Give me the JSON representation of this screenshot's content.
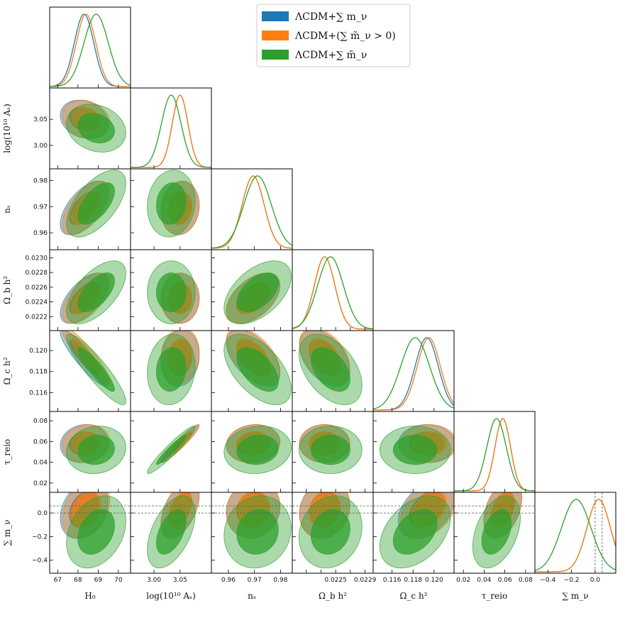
{
  "chart_data": {
    "type": "corner",
    "title": "",
    "params": [
      {
        "key": "H0",
        "label": "H₀",
        "range": [
          66.6,
          70.6
        ],
        "ticks": [
          67,
          68,
          69,
          70
        ],
        "tick_labels": [
          "67",
          "68",
          "69",
          "70"
        ],
        "means": [
          68.3,
          68.4,
          68.9
        ],
        "sigma": 0.48
      },
      {
        "key": "logAs",
        "label": "log(10¹⁰ Aₛ)",
        "range": [
          2.955,
          3.11
        ],
        "ticks": [
          3.0,
          3.05
        ],
        "tick_labels": [
          "3.00",
          "3.05"
        ],
        "means": [
          3.05,
          3.05,
          3.033
        ],
        "sigma": 0.015
      },
      {
        "key": "ns",
        "label": "nₛ",
        "range": [
          0.9535,
          0.9845
        ],
        "ticks": [
          0.96,
          0.97,
          0.98
        ],
        "tick_labels": [
          "0.96",
          "0.97",
          "0.98"
        ],
        "means": [
          0.9695,
          0.9695,
          0.9712
        ],
        "sigma": 0.0042
      },
      {
        "key": "Obh2",
        "label": "Ω_b h²",
        "range": [
          0.02201,
          0.02311
        ],
        "ticks": [
          0.0222,
          0.0224,
          0.0226,
          0.0228,
          0.023
        ],
        "tick_labels": [
          "0.0222",
          "0.0224",
          "0.0226",
          "0.0228",
          "0.0230"
        ],
        "xtick_labels": [
          "",
          "",
          "0.0225",
          "",
          "0.0229"
        ],
        "means": [
          0.02245,
          0.02245,
          0.02253
        ],
        "sigma": 0.00014
      },
      {
        "key": "Och2",
        "label": "Ω_c h²",
        "range": [
          0.1142,
          0.1219
        ],
        "ticks": [
          0.116,
          0.118,
          0.12
        ],
        "tick_labels": [
          "0.116",
          "0.118",
          "0.120"
        ],
        "means": [
          0.1193,
          0.1195,
          0.1182
        ],
        "sigma": 0.0011
      },
      {
        "key": "tau",
        "label": "τ_reio",
        "range": [
          0.011,
          0.089
        ],
        "ticks": [
          0.02,
          0.04,
          0.06,
          0.08
        ],
        "tick_labels": [
          "0.02",
          "0.04",
          "0.06",
          "0.08"
        ],
        "means": [
          0.058,
          0.058,
          0.052
        ],
        "sigma": 0.0075
      },
      {
        "key": "mnu",
        "label": "∑ m_ν",
        "range": [
          -0.51,
          0.175
        ],
        "ticks": [
          -0.4,
          -0.2,
          0.0
        ],
        "tick_labels": [
          "−0.4",
          "−0.2",
          "0.0"
        ],
        "ytick_values": [
          -0.4,
          -0.2,
          0.0
        ],
        "ytick_labels": [
          "−0.4",
          "−0.2",
          "0.0"
        ],
        "means": [
          0.03,
          0.03,
          -0.16
        ],
        "sigma": 0.1
      }
    ],
    "series": [
      {
        "name": "ΛCDM+∑ m_ν",
        "color": "#1f77b4"
      },
      {
        "name": "ΛCDM+(∑ m̃_ν > 0)",
        "color": "#ff7f0e"
      },
      {
        "name": "ΛCDM+∑ m̃_ν",
        "color": "#2ca02c"
      }
    ],
    "correlations": {
      "H0-logAs": -0.2,
      "H0-ns": 0.6,
      "H0-Obh2": 0.6,
      "H0-Och2": -0.9,
      "H0-tau": 0.1,
      "H0-mnu": 0.3,
      "logAs-ns": 0.1,
      "logAs-Obh2": 0.0,
      "logAs-Och2": 0.1,
      "logAs-tau": 0.95,
      "logAs-mnu": 0.5,
      "ns-Obh2": 0.5,
      "ns-Och2": -0.55,
      "ns-tau": 0.1,
      "ns-mnu": 0.1,
      "Obh2-Och2": -0.45,
      "Obh2-tau": 0.0,
      "Obh2-mnu": 0.15,
      "Och2-tau": 0.0,
      "Och2-mnu": 0.4,
      "tau-mnu": 0.4
    },
    "reference_lines": {
      "mnu_dashed": [
        0.0,
        0.06
      ]
    }
  },
  "legend": {
    "entries": [
      {
        "label": "ΛCDM+∑ m_ν",
        "color": "#1f77b4"
      },
      {
        "label": "ΛCDM+(∑ m̃_ν > 0)",
        "color": "#ff7f0e"
      },
      {
        "label": "ΛCDM+∑ m̃_ν",
        "color": "#2ca02c"
      }
    ]
  }
}
